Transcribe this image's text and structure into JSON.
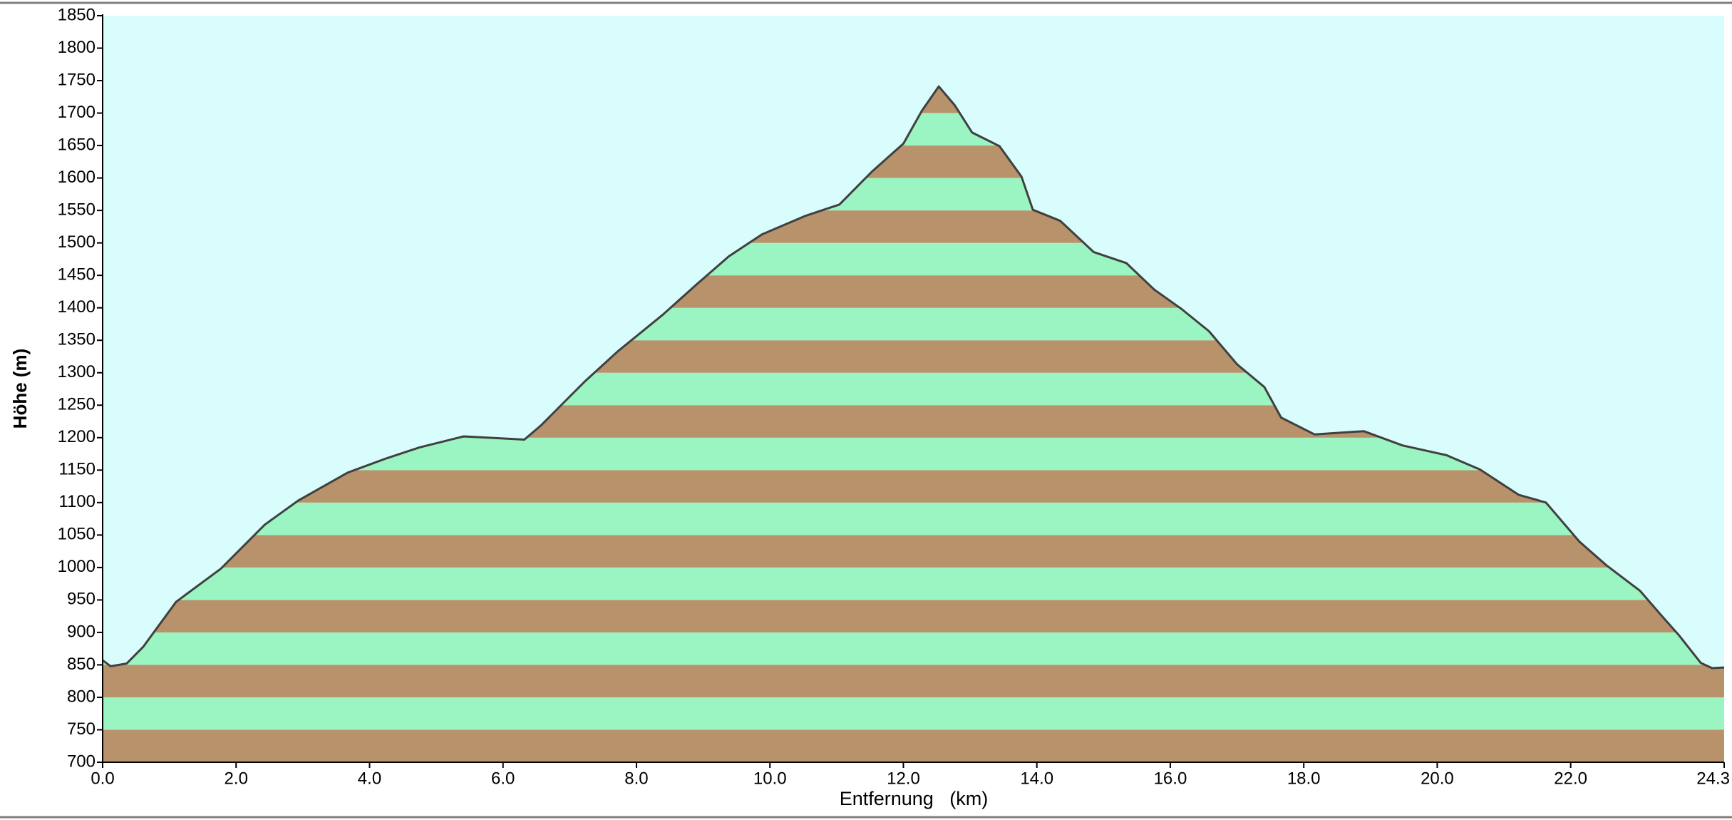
{
  "chart_data": {
    "type": "area",
    "ylabel": "Höhe (m)",
    "xlabel": "Entfernung   (km)",
    "x": [
      0,
      0.12,
      0.36,
      0.61,
      1.1,
      1.77,
      2.43,
      2.93,
      3.67,
      4.25,
      4.75,
      5.41,
      6.32,
      6.57,
      6.9,
      7.23,
      7.72,
      8.39,
      8.89,
      9.38,
      9.88,
      10.54,
      11.04,
      11.53,
      12.0,
      12.28,
      12.53,
      12.77,
      13.03,
      13.44,
      13.77,
      13.94,
      14.35,
      14.85,
      15.34,
      15.76,
      16.17,
      16.58,
      17.0,
      17.41,
      17.66,
      18.16,
      18.9,
      19.48,
      20.14,
      20.64,
      21.22,
      21.63,
      22.13,
      22.54,
      23.04,
      23.37,
      23.62,
      23.95,
      24.12,
      24.3
    ],
    "series": [
      {
        "name": "Höhe",
        "color": "#404040",
        "values": [
          857,
          848,
          852,
          878,
          947,
          998,
          1066,
          1103,
          1146,
          1168,
          1185,
          1202,
          1197,
          1219,
          1253,
          1287,
          1333,
          1389,
          1435,
          1479,
          1513,
          1542,
          1559,
          1610,
          1653,
          1704,
          1741,
          1712,
          1670,
          1649,
          1602,
          1551,
          1534,
          1486,
          1469,
          1428,
          1398,
          1364,
          1313,
          1278,
          1231,
          1205,
          1210,
          1188,
          1173,
          1151,
          1112,
          1100,
          1040,
          1003,
          964,
          925,
          896,
          853,
          845,
          846
        ]
      }
    ],
    "xlim": [
      0,
      24.3
    ],
    "xticks": [
      {
        "value": 0,
        "label": "0.0"
      },
      {
        "value": 2,
        "label": "2.0"
      },
      {
        "value": 4,
        "label": "4.0"
      },
      {
        "value": 6,
        "label": "6.0"
      },
      {
        "value": 8,
        "label": "8.0"
      },
      {
        "value": 10,
        "label": "10.0"
      },
      {
        "value": 12,
        "label": "12.0"
      },
      {
        "value": 14,
        "label": "14.0"
      },
      {
        "value": 16,
        "label": "16.0"
      },
      {
        "value": 18,
        "label": "18.0"
      },
      {
        "value": 20,
        "label": "20.0"
      },
      {
        "value": 22,
        "label": "22.0"
      },
      24.3
    ],
    "ylim": [
      700,
      1850
    ],
    "yticks": [
      700,
      750,
      800,
      850,
      900,
      950,
      1000,
      1050,
      1100,
      1150,
      1200,
      1250,
      1300,
      1350,
      1400,
      1450,
      1500,
      1550,
      1600,
      1650,
      1700,
      1750,
      1800,
      1850
    ],
    "background": "#d9fdfd",
    "bands": {
      "step": 50,
      "colors": [
        "#b8926a",
        "#9af5c2"
      ]
    }
  }
}
